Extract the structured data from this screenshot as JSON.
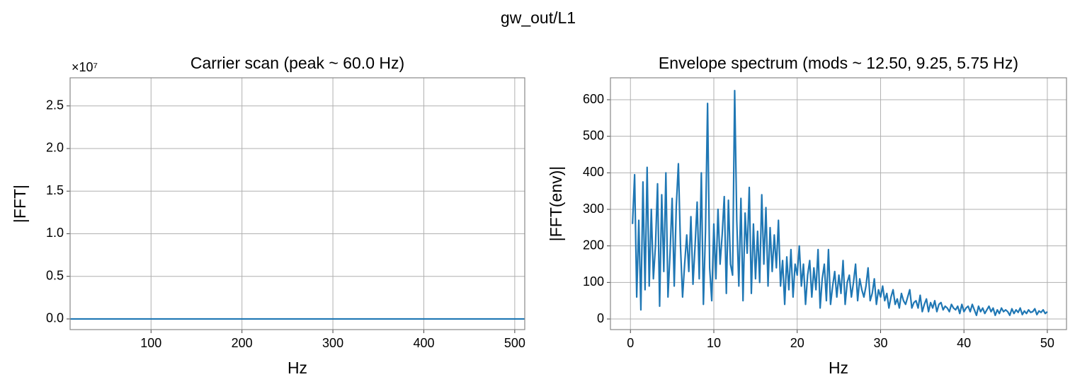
{
  "title": "gw_out/L1",
  "chart_data": [
    {
      "type": "line",
      "title": "Carrier scan (peak ~ 60.0 Hz)",
      "x_label": "Hz",
      "y_label": "|FFT|",
      "y_offset_label": "×10⁷",
      "x": [
        11,
        100,
        200,
        300,
        400,
        511
      ],
      "values": [
        0,
        0,
        0,
        0,
        0,
        0
      ],
      "color": "#1f77b4",
      "xlim": [
        11,
        511
      ],
      "xticks": [
        100,
        200,
        300,
        400,
        500
      ],
      "ylim": [
        -1250000,
        28300000
      ],
      "yticks": [
        {
          "value": 0,
          "label": "0.0"
        },
        {
          "value": 5000000,
          "label": "0.5"
        },
        {
          "value": 10000000,
          "label": "1.0"
        },
        {
          "value": 15000000,
          "label": "1.5"
        },
        {
          "value": 20000000,
          "label": "2.0"
        },
        {
          "value": 25000000,
          "label": "2.5"
        }
      ],
      "grid": true
    },
    {
      "type": "line",
      "title": "Envelope spectrum (mods ~ 12.50, 9.25, 5.75 Hz)",
      "x_label": "Hz",
      "y_label": "|FFT(env)|",
      "x": [
        0.25,
        0.5,
        0.75,
        1,
        1.25,
        1.5,
        1.75,
        2,
        2.25,
        2.5,
        2.75,
        3,
        3.25,
        3.5,
        3.75,
        4,
        4.25,
        4.5,
        4.75,
        5,
        5.25,
        5.5,
        5.75,
        6,
        6.25,
        6.5,
        6.75,
        7,
        7.25,
        7.5,
        7.75,
        8,
        8.25,
        8.5,
        8.75,
        9,
        9.25,
        9.5,
        9.75,
        10,
        10.25,
        10.5,
        10.75,
        11,
        11.25,
        11.5,
        11.75,
        12,
        12.25,
        12.5,
        12.75,
        13,
        13.25,
        13.5,
        13.75,
        14,
        14.25,
        14.5,
        14.75,
        15,
        15.25,
        15.5,
        15.75,
        16,
        16.25,
        16.5,
        16.75,
        17,
        17.25,
        17.5,
        17.75,
        18,
        18.25,
        18.5,
        18.75,
        19,
        19.25,
        19.5,
        19.75,
        20,
        20.25,
        20.5,
        20.75,
        21,
        21.25,
        21.5,
        21.75,
        22,
        22.25,
        22.5,
        22.75,
        23,
        23.25,
        23.5,
        23.75,
        24,
        24.25,
        24.5,
        24.75,
        25,
        25.25,
        25.5,
        25.75,
        26,
        26.25,
        26.5,
        26.75,
        27,
        27.25,
        27.5,
        27.75,
        28,
        28.25,
        28.5,
        28.75,
        29,
        29.25,
        29.5,
        29.75,
        30,
        30.25,
        30.5,
        30.75,
        31,
        31.25,
        31.5,
        31.75,
        32,
        32.25,
        32.5,
        32.75,
        33,
        33.25,
        33.5,
        33.75,
        34,
        34.25,
        34.5,
        34.75,
        35,
        35.25,
        35.5,
        35.75,
        36,
        36.25,
        36.5,
        36.75,
        37,
        37.25,
        37.5,
        37.75,
        38,
        38.25,
        38.5,
        38.75,
        39,
        39.25,
        39.5,
        39.75,
        40,
        40.25,
        40.5,
        40.75,
        41,
        41.25,
        41.5,
        41.75,
        42,
        42.25,
        42.5,
        42.75,
        43,
        43.25,
        43.5,
        43.75,
        44,
        44.25,
        44.5,
        44.75,
        45,
        45.25,
        45.5,
        45.75,
        46,
        46.25,
        46.5,
        46.75,
        47,
        47.25,
        47.5,
        47.75,
        48,
        48.25,
        48.5,
        48.75,
        49,
        49.25,
        49.5,
        49.75,
        50
      ],
      "values": [
        260,
        395,
        60,
        270,
        25,
        375,
        80,
        415,
        90,
        300,
        110,
        200,
        370,
        35,
        340,
        130,
        400,
        60,
        180,
        330,
        90,
        310,
        425,
        200,
        60,
        150,
        230,
        130,
        280,
        95,
        200,
        320,
        110,
        400,
        40,
        240,
        590,
        140,
        50,
        260,
        110,
        300,
        150,
        230,
        335,
        70,
        325,
        150,
        120,
        625,
        270,
        90,
        330,
        50,
        290,
        180,
        360,
        70,
        260,
        110,
        240,
        100,
        340,
        150,
        305,
        90,
        250,
        130,
        230,
        140,
        270,
        90,
        160,
        40,
        170,
        80,
        190,
        60,
        150,
        120,
        200,
        90,
        150,
        40,
        120,
        160,
        60,
        140,
        80,
        190,
        30,
        110,
        150,
        50,
        190,
        40,
        90,
        130,
        60,
        120,
        70,
        160,
        40,
        100,
        120,
        60,
        100,
        150,
        50,
        110,
        80,
        60,
        90,
        140,
        50,
        70,
        110,
        40,
        80,
        60,
        90,
        50,
        70,
        30,
        60,
        80,
        40,
        55,
        30,
        70,
        50,
        40,
        60,
        80,
        30,
        45,
        50,
        30,
        65,
        20,
        40,
        55,
        20,
        45,
        30,
        50,
        20,
        40,
        45,
        25,
        35,
        30,
        20,
        40,
        30,
        25,
        35,
        15,
        40,
        20,
        30,
        35,
        20,
        40,
        25,
        10,
        35,
        20,
        30,
        15,
        25,
        35,
        20,
        30,
        10,
        25,
        15,
        30,
        20,
        25,
        20,
        10,
        28,
        15,
        25,
        18,
        30,
        12,
        22,
        15,
        25,
        18,
        20,
        28,
        12,
        22,
        18,
        25,
        15,
        20
      ],
      "color": "#1f77b4",
      "xlim": [
        -2.4,
        52.3
      ],
      "xticks": [
        0,
        10,
        20,
        30,
        40,
        50
      ],
      "ylim": [
        -29,
        660
      ],
      "yticks": [
        0,
        100,
        200,
        300,
        400,
        500,
        600
      ],
      "grid": true
    }
  ]
}
